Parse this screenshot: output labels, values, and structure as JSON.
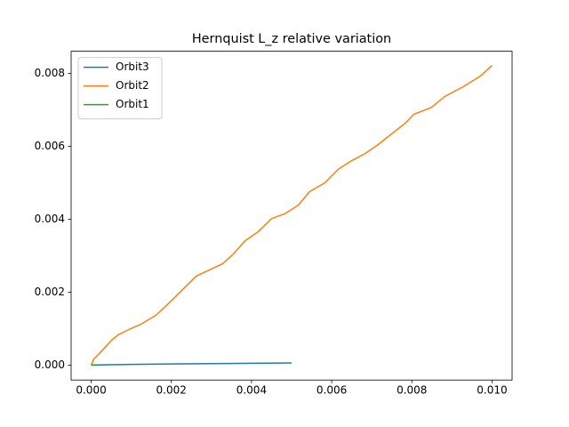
{
  "chart_data": {
    "type": "line",
    "title": "Hernquist L_z relative variation",
    "xlim": [
      -0.0005,
      0.0105
    ],
    "ylim": [
      -0.00041,
      0.00861
    ],
    "xticks": [
      {
        "value": 0,
        "label": "0.000"
      },
      {
        "value": 0.002,
        "label": "0.002"
      },
      {
        "value": 0.004,
        "label": "0.004"
      },
      {
        "value": 0.006,
        "label": "0.006"
      },
      {
        "value": 0.008,
        "label": "0.008"
      },
      {
        "value": 0.01,
        "label": "0.010"
      }
    ],
    "yticks": [
      {
        "value": 0,
        "label": "0.000"
      },
      {
        "value": 0.002,
        "label": "0.002"
      },
      {
        "value": 0.004,
        "label": "0.004"
      },
      {
        "value": 0.006,
        "label": "0.006"
      },
      {
        "value": 0.008,
        "label": "0.008"
      }
    ],
    "legend": "upper left",
    "series": [
      {
        "name": "Orbit3",
        "color": "#1f77b4",
        "x": [
          0,
          0.001,
          0.002,
          0.003,
          0.004,
          0.005
        ],
        "values": [
          0,
          2e-05,
          3e-05,
          4e-05,
          5e-05,
          6e-05
        ]
      },
      {
        "name": "Orbit2",
        "color": "#ff7f0e",
        "x": [
          0,
          7e-05,
          0.00018,
          0.00035,
          0.00051,
          0.00067,
          0.00095,
          0.00124,
          0.00162,
          0.00195,
          0.00228,
          0.00262,
          0.00295,
          0.00328,
          0.00355,
          0.00384,
          0.00417,
          0.0045,
          0.00483,
          0.00517,
          0.00545,
          0.00583,
          0.00616,
          0.0065,
          0.00683,
          0.00716,
          0.00749,
          0.00783,
          0.00805,
          0.00849,
          0.00882,
          0.00927,
          0.00971,
          0.01
        ],
        "values": [
          0,
          0.00017,
          0.00029,
          0.00049,
          0.00068,
          0.00083,
          0.00098,
          0.00112,
          0.00137,
          0.00171,
          0.00207,
          0.00244,
          0.00261,
          0.00278,
          0.00305,
          0.00341,
          0.00366,
          0.00402,
          0.00415,
          0.00439,
          0.00476,
          0.005,
          0.00537,
          0.00561,
          0.0058,
          0.00605,
          0.00634,
          0.00663,
          0.00688,
          0.00707,
          0.00737,
          0.00763,
          0.00793,
          0.00822
        ]
      },
      {
        "name": "Orbit1",
        "color": "#2ca02c",
        "x": [
          0,
          5e-05,
          0.0001
        ],
        "values": [
          0,
          0,
          0
        ]
      }
    ]
  }
}
